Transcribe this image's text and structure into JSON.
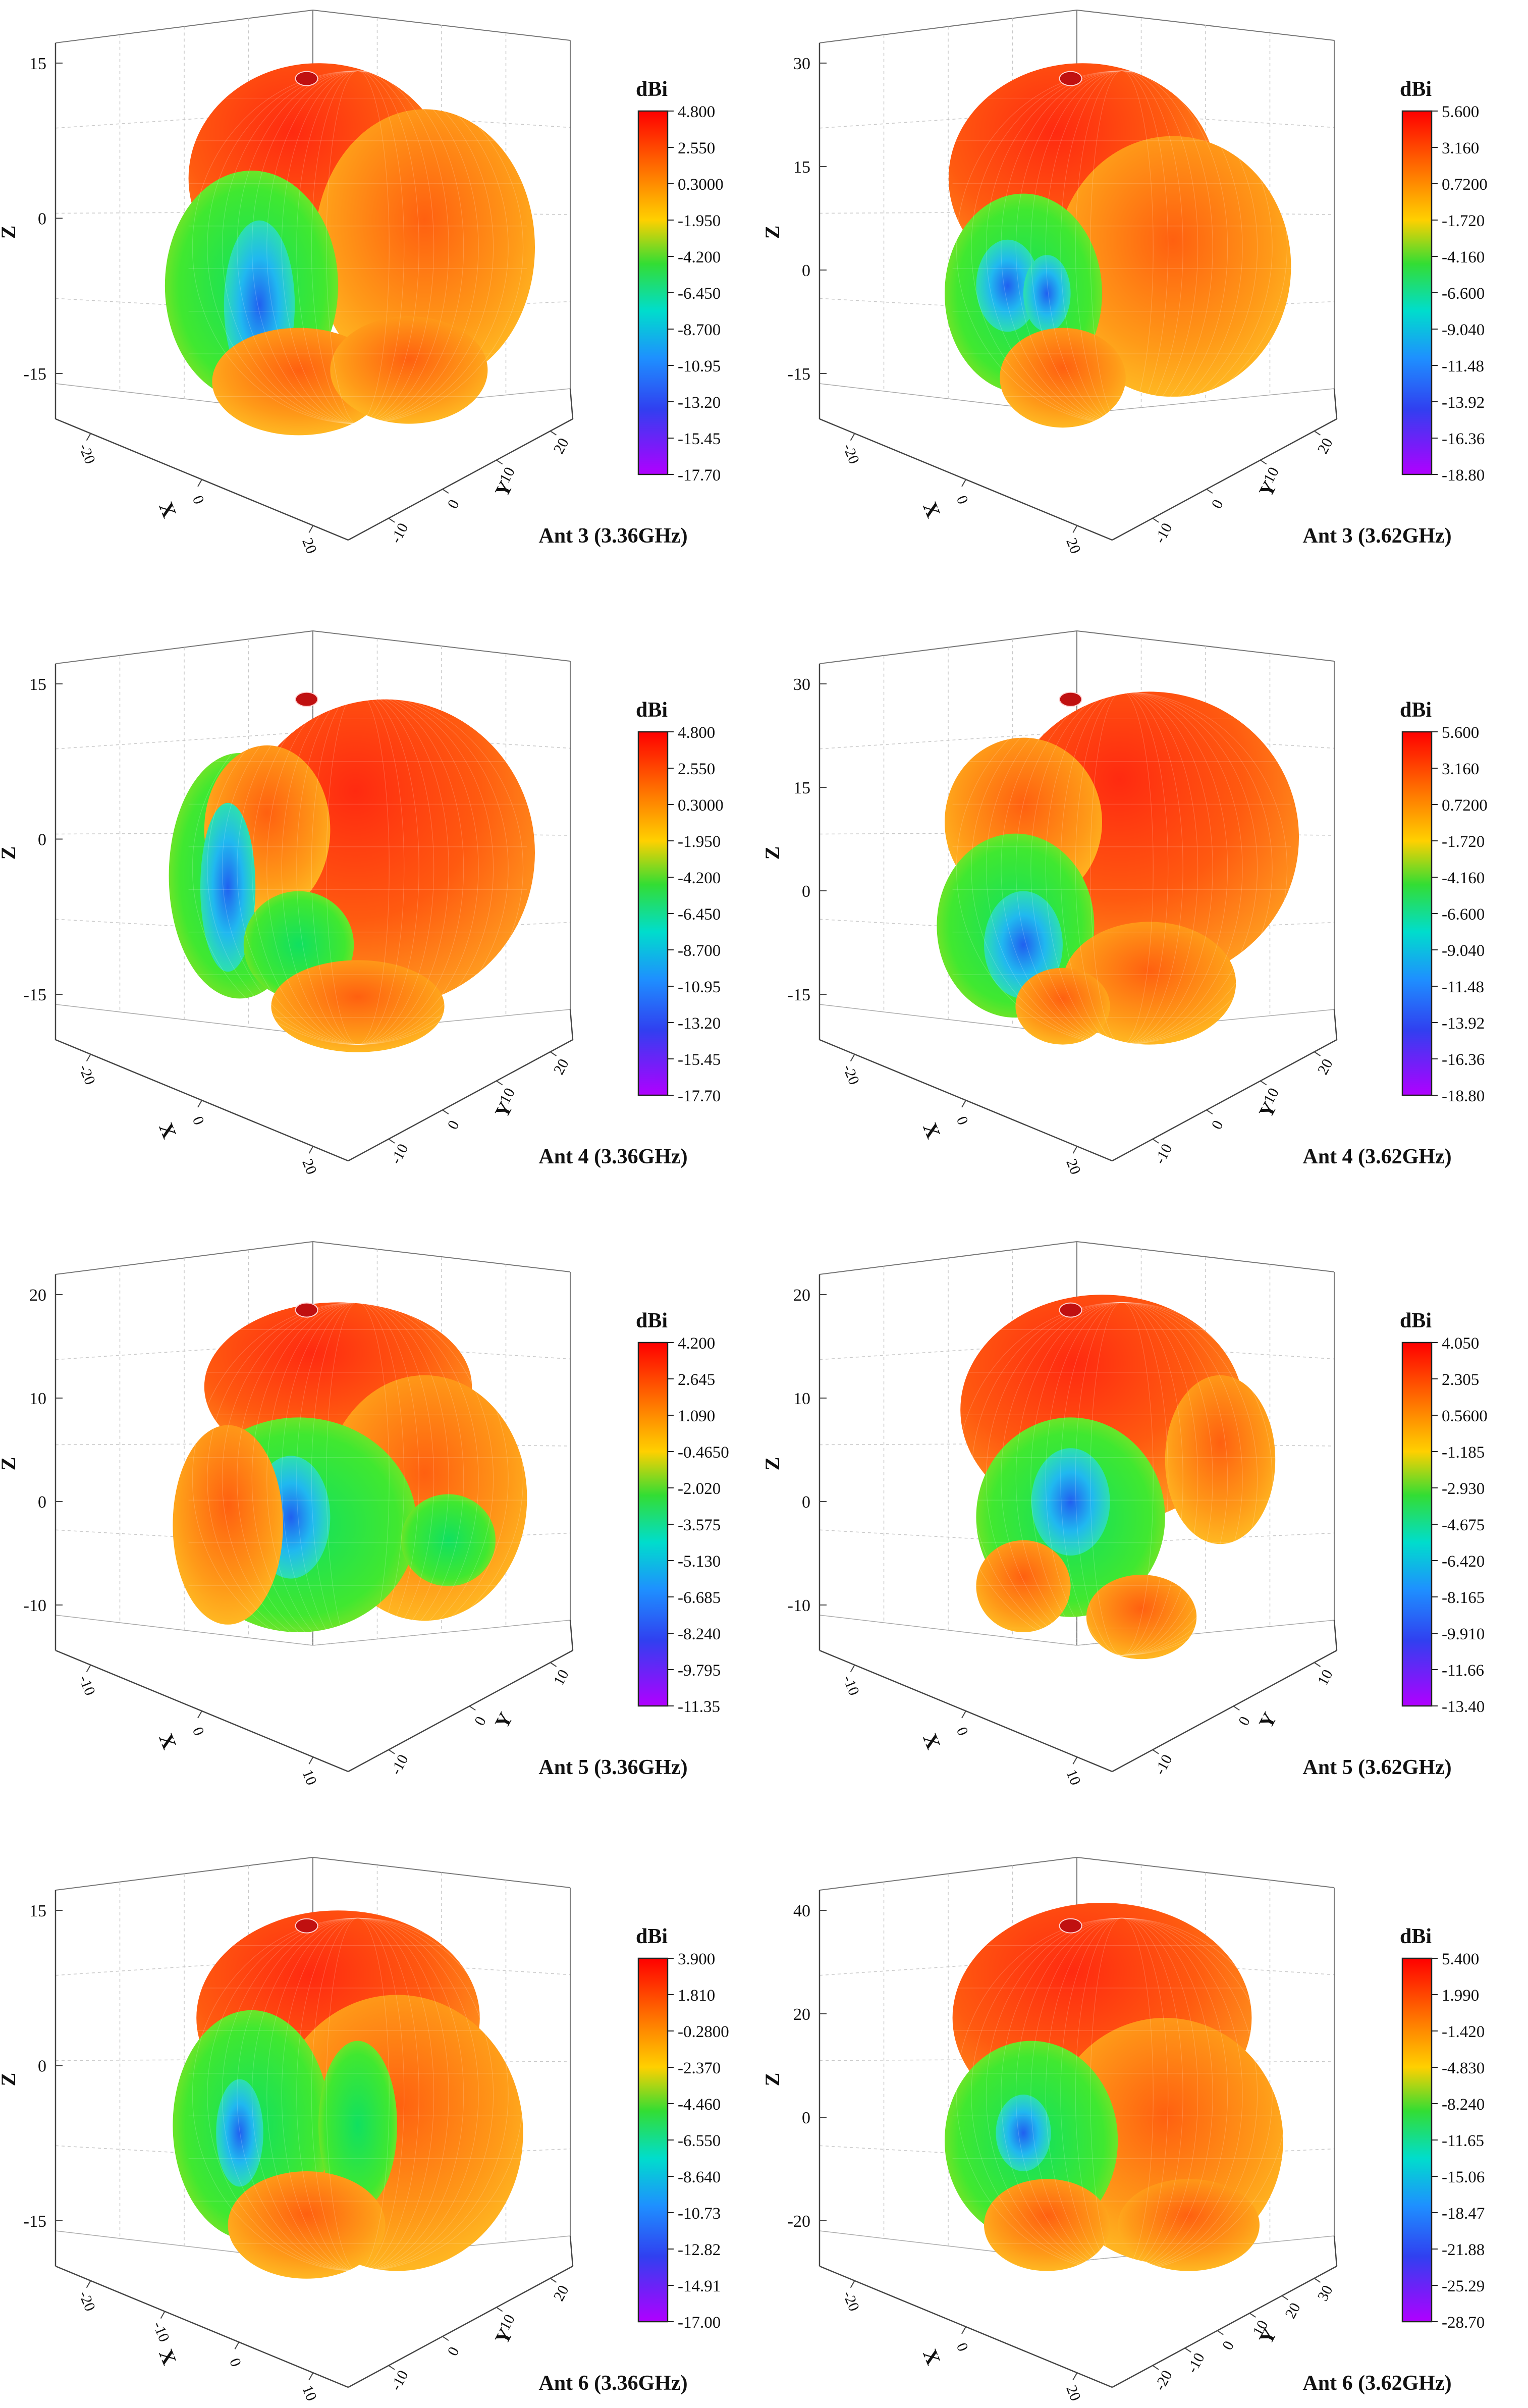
{
  "figure": {
    "panel_count": 8,
    "layout": "4 rows x 2 columns"
  },
  "chart_data": [
    {
      "type": "3d-radiation-pattern",
      "title": "Ant 3 (3.36GHz)",
      "xlabel": "X",
      "ylabel": "Y",
      "zlabel": "Z",
      "x_ticks": [
        "-20",
        "0",
        "20"
      ],
      "y_ticks": [
        "-10",
        "0",
        "10",
        "20"
      ],
      "z_ticks": [
        "-15",
        "0",
        "15"
      ],
      "colorbar": {
        "title": "dBi",
        "labels": [
          "4.800",
          "2.550",
          "0.3000",
          "-1.950",
          "-4.200",
          "-6.450",
          "-8.700",
          "-10.95",
          "-13.20",
          "-15.45",
          "-17.70"
        ],
        "max": 4.8,
        "min": -17.7
      },
      "surface_colors": [
        "#ff3010",
        "#ff7a10",
        "#ffb020",
        "#2ee84a",
        "#2fd9f5",
        "#3a8cf5"
      ]
    },
    {
      "type": "3d-radiation-pattern",
      "title": "Ant 3 (3.62GHz)",
      "xlabel": "X",
      "ylabel": "Y",
      "zlabel": "Z",
      "x_ticks": [
        "-20",
        "0",
        "20"
      ],
      "y_ticks": [
        "-10",
        "0",
        "10",
        "20"
      ],
      "z_ticks": [
        "-15",
        "0",
        "15",
        "30"
      ],
      "colorbar": {
        "title": "dBi",
        "labels": [
          "5.600",
          "3.160",
          "0.7200",
          "-1.720",
          "-4.160",
          "-6.600",
          "-9.040",
          "-11.48",
          "-13.92",
          "-16.36",
          "-18.80"
        ],
        "max": 5.6,
        "min": -18.8
      },
      "surface_colors": [
        "#ff3010",
        "#ff7a10",
        "#ffb020",
        "#2ee84a",
        "#2fd9f5",
        "#3a8cf5"
      ]
    },
    {
      "type": "3d-radiation-pattern",
      "title": "Ant 4 (3.36GHz)",
      "xlabel": "X",
      "ylabel": "Y",
      "zlabel": "Z",
      "x_ticks": [
        "-20",
        "0",
        "20"
      ],
      "y_ticks": [
        "-10",
        "0",
        "10",
        "20"
      ],
      "z_ticks": [
        "-15",
        "0",
        "15"
      ],
      "colorbar": {
        "title": "dBi",
        "labels": [
          "4.800",
          "2.550",
          "0.3000",
          "-1.950",
          "-4.200",
          "-6.450",
          "-8.700",
          "-10.95",
          "-13.20",
          "-15.45",
          "-17.70"
        ],
        "max": 4.8,
        "min": -17.7
      },
      "surface_colors": [
        "#ff3010",
        "#ff7a10",
        "#ffb020",
        "#2ee84a",
        "#2fd9f5",
        "#3a8cf5"
      ]
    },
    {
      "type": "3d-radiation-pattern",
      "title": "Ant 4 (3.62GHz)",
      "xlabel": "X",
      "ylabel": "Y",
      "zlabel": "Z",
      "x_ticks": [
        "-20",
        "0",
        "20"
      ],
      "y_ticks": [
        "-10",
        "0",
        "10",
        "20"
      ],
      "z_ticks": [
        "-15",
        "0",
        "15",
        "30"
      ],
      "colorbar": {
        "title": "dBi",
        "labels": [
          "5.600",
          "3.160",
          "0.7200",
          "-1.720",
          "-4.160",
          "-6.600",
          "-9.040",
          "-11.48",
          "-13.92",
          "-16.36",
          "-18.80"
        ],
        "max": 5.6,
        "min": -18.8
      },
      "surface_colors": [
        "#ff3010",
        "#ff7a10",
        "#ffb020",
        "#2ee84a",
        "#2fd9f5",
        "#3a8cf5"
      ]
    },
    {
      "type": "3d-radiation-pattern",
      "title": "Ant 5 (3.36GHz)",
      "xlabel": "X",
      "ylabel": "Y",
      "zlabel": "Z",
      "x_ticks": [
        "-10",
        "0",
        "10"
      ],
      "y_ticks": [
        "-10",
        "0",
        "10"
      ],
      "z_ticks": [
        "-10",
        "0",
        "10",
        "20"
      ],
      "colorbar": {
        "title": "dBi",
        "labels": [
          "4.200",
          "2.645",
          "1.090",
          "-0.4650",
          "-2.020",
          "-3.575",
          "-5.130",
          "-6.685",
          "-8.240",
          "-9.795",
          "-11.35"
        ],
        "max": 4.2,
        "min": -11.35
      },
      "surface_colors": [
        "#ff3010",
        "#ff7a10",
        "#ffb020",
        "#2ee84a",
        "#2fd9f5",
        "#3a8cf5"
      ]
    },
    {
      "type": "3d-radiation-pattern",
      "title": "Ant 5 (3.62GHz)",
      "xlabel": "X",
      "ylabel": "Y",
      "zlabel": "Z",
      "x_ticks": [
        "-10",
        "0",
        "10"
      ],
      "y_ticks": [
        "-10",
        "0",
        "10"
      ],
      "z_ticks": [
        "-10",
        "0",
        "10",
        "20"
      ],
      "colorbar": {
        "title": "dBi",
        "labels": [
          "4.050",
          "2.305",
          "0.5600",
          "-1.185",
          "-2.930",
          "-4.675",
          "-6.420",
          "-8.165",
          "-9.910",
          "-11.66",
          "-13.40"
        ],
        "max": 4.05,
        "min": -13.4
      },
      "surface_colors": [
        "#ff3010",
        "#ff7a10",
        "#ffb020",
        "#2ee84a",
        "#2fd9f5",
        "#3a8cf5"
      ]
    },
    {
      "type": "3d-radiation-pattern",
      "title": "Ant 6 (3.36GHz)",
      "xlabel": "X",
      "ylabel": "Y",
      "zlabel": "Z",
      "x_ticks": [
        "-20",
        "-10",
        "0",
        "10"
      ],
      "y_ticks": [
        "-10",
        "0",
        "10",
        "20"
      ],
      "z_ticks": [
        "-15",
        "0",
        "15"
      ],
      "colorbar": {
        "title": "dBi",
        "labels": [
          "3.900",
          "1.810",
          "-0.2800",
          "-2.370",
          "-4.460",
          "-6.550",
          "-8.640",
          "-10.73",
          "-12.82",
          "-14.91",
          "-17.00"
        ],
        "max": 3.9,
        "min": -17.0
      },
      "surface_colors": [
        "#ff3010",
        "#ff7a10",
        "#ffb020",
        "#2ee84a",
        "#2fd9f5",
        "#3a8cf5"
      ]
    },
    {
      "type": "3d-radiation-pattern",
      "title": "Ant 6 (3.62GHz)",
      "xlabel": "X",
      "ylabel": "Y",
      "zlabel": "Z",
      "x_ticks": [
        "-20",
        "0",
        "20"
      ],
      "y_ticks": [
        "-20",
        "-10",
        "0",
        "10",
        "20",
        "30"
      ],
      "z_ticks": [
        "-20",
        "0",
        "20",
        "40"
      ],
      "colorbar": {
        "title": "dBi",
        "labels": [
          "5.400",
          "1.990",
          "-1.420",
          "-4.830",
          "-8.240",
          "-11.65",
          "-15.06",
          "-18.47",
          "-21.88",
          "-25.29",
          "-28.70"
        ],
        "max": 5.4,
        "min": -28.7
      },
      "surface_colors": [
        "#ff3010",
        "#ff7a10",
        "#ffb020",
        "#2ee84a",
        "#2fd9f5",
        "#3a8cf5"
      ]
    }
  ]
}
